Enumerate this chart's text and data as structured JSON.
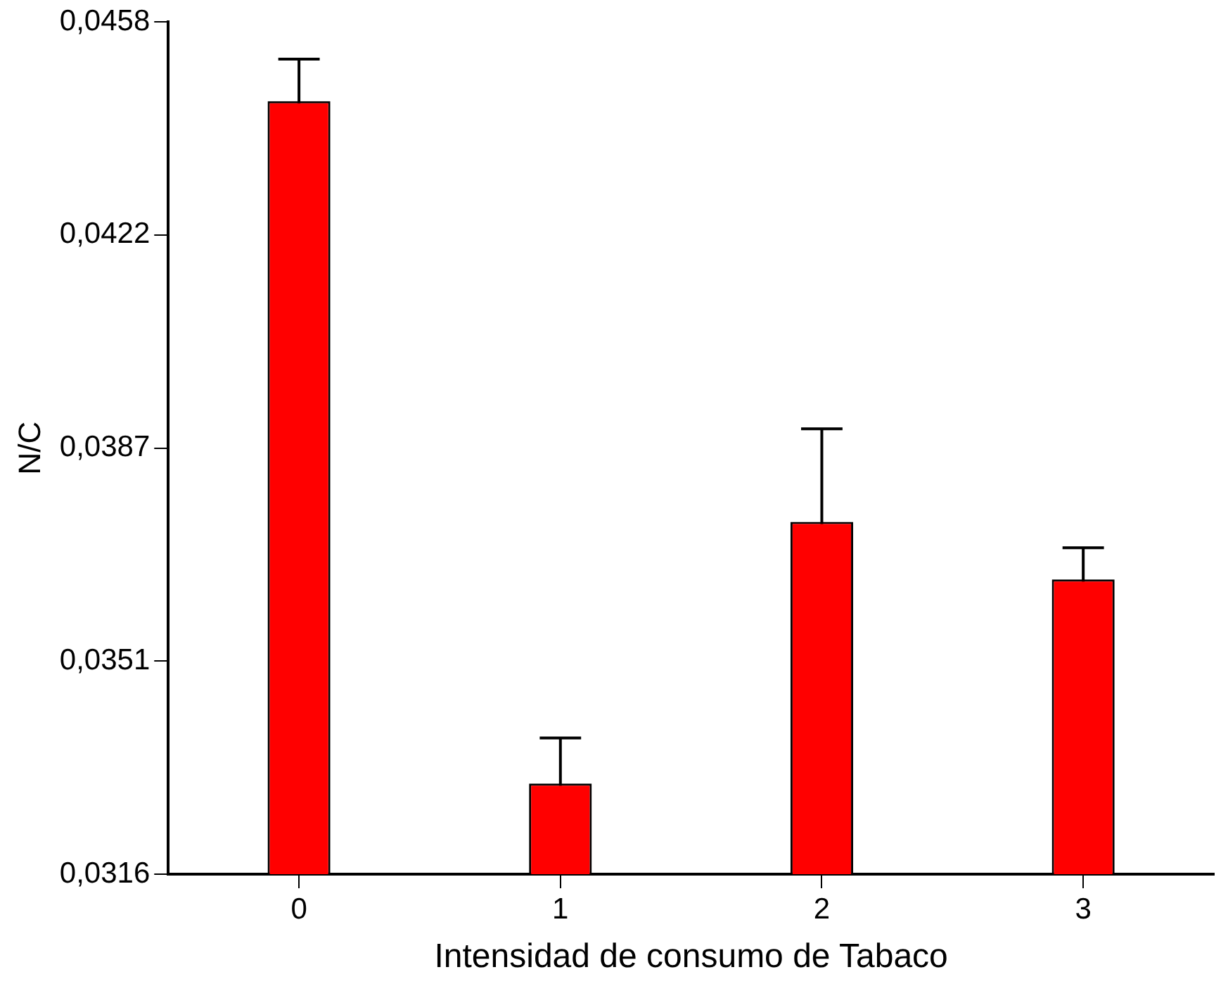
{
  "chart_data": {
    "type": "bar",
    "xlabel": "Intensidad de consumo de Tabaco",
    "ylabel": "N/C",
    "categories": [
      "0",
      "1",
      "2",
      "3"
    ],
    "values": [
      0.04448,
      0.03311,
      0.03747,
      0.03651
    ],
    "errors": [
      0.0007,
      0.00076,
      0.00155,
      0.00053
    ],
    "color": "#ff0000",
    "ylim": [
      0.0316,
      0.0458
    ],
    "yticks": [
      {
        "value": 0.0316,
        "label": "0,0316"
      },
      {
        "value": 0.03515,
        "label": "0,0351"
      },
      {
        "value": 0.0387,
        "label": "0,0387"
      },
      {
        "value": 0.04225,
        "label": "0,0422"
      },
      {
        "value": 0.0458,
        "label": "0,0458"
      }
    ],
    "grid": false,
    "legend": false
  }
}
